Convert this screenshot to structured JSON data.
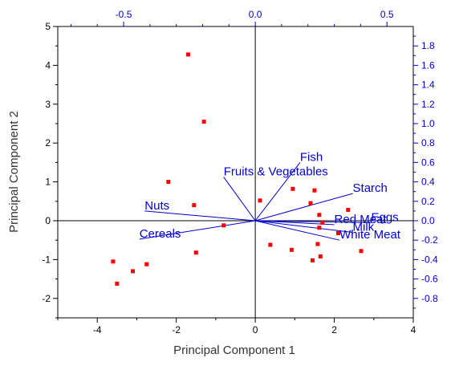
{
  "chart_data": {
    "type": "scatter",
    "title": "",
    "xlabel": "Principal Component 1",
    "ylabel": "Principal Component 2",
    "xlim": [
      -5,
      4
    ],
    "ylim": [
      -2.5,
      5
    ],
    "x_ticks": [
      -4,
      -2,
      0,
      2,
      4
    ],
    "y_ticks": [
      -2,
      -1,
      0,
      1,
      2,
      3,
      4,
      5
    ],
    "top_axis": {
      "lim": [
        -0.75,
        0.6
      ],
      "ticks": [
        -0.5,
        0.0,
        0.5
      ],
      "tick_labels": [
        "-0.5",
        "0.0",
        "0.5"
      ]
    },
    "right_axis": {
      "lim": [
        -1.0,
        2.0
      ],
      "ticks": [
        -0.8,
        -0.6,
        -0.4,
        -0.2,
        0.0,
        0.2,
        0.4,
        0.6,
        0.8,
        1.0,
        1.2,
        1.4,
        1.6,
        1.8
      ],
      "tick_labels": [
        "-0.8",
        "-0.6",
        "-0.4",
        "-0.2",
        "0.0",
        "0.2",
        "0.4",
        "0.6",
        "0.8",
        "1.0",
        "1.2",
        "1.4",
        "1.6",
        "1.8"
      ]
    },
    "points": [
      [
        -1.7,
        4.28
      ],
      [
        -1.3,
        2.55
      ],
      [
        -2.2,
        1.0
      ],
      [
        -1.55,
        0.4
      ],
      [
        -0.8,
        -0.12
      ],
      [
        -1.5,
        -0.82
      ],
      [
        -2.75,
        -1.12
      ],
      [
        -3.1,
        -1.3
      ],
      [
        -3.6,
        -1.05
      ],
      [
        -3.5,
        -1.62
      ],
      [
        0.12,
        0.52
      ],
      [
        0.95,
        0.82
      ],
      [
        1.5,
        0.78
      ],
      [
        1.4,
        0.45
      ],
      [
        1.62,
        0.15
      ],
      [
        2.35,
        0.28
      ],
      [
        1.7,
        -0.05
      ],
      [
        2.1,
        -0.32
      ],
      [
        1.62,
        -0.18
      ],
      [
        0.38,
        -0.62
      ],
      [
        0.92,
        -0.75
      ],
      [
        1.58,
        -0.6
      ],
      [
        1.45,
        -1.02
      ],
      [
        1.65,
        -0.92
      ],
      [
        2.68,
        -0.78
      ]
    ],
    "loadings": [
      {
        "label": "Fish",
        "x": 0.17,
        "y": 0.6
      },
      {
        "label": "Fruits & Vegetables",
        "x": -0.12,
        "y": 0.45
      },
      {
        "label": "Starch",
        "x": 0.37,
        "y": 0.28
      },
      {
        "label": "Nuts",
        "x": -0.42,
        "y": 0.1
      },
      {
        "label": "Cereals",
        "x": -0.44,
        "y": -0.19
      },
      {
        "label": "Red Meat",
        "x": 0.3,
        "y": -0.04
      },
      {
        "label": "Eggs",
        "x": 0.44,
        "y": -0.02
      },
      {
        "label": "Milk",
        "x": 0.37,
        "y": -0.12
      },
      {
        "label": "White Meat",
        "x": 0.32,
        "y": -0.2
      }
    ],
    "colors": {
      "points": "#ff0000",
      "vectors": "#0000cc",
      "axes_main": "#000000",
      "axes_secondary": "#0000cc"
    },
    "grid": false
  }
}
